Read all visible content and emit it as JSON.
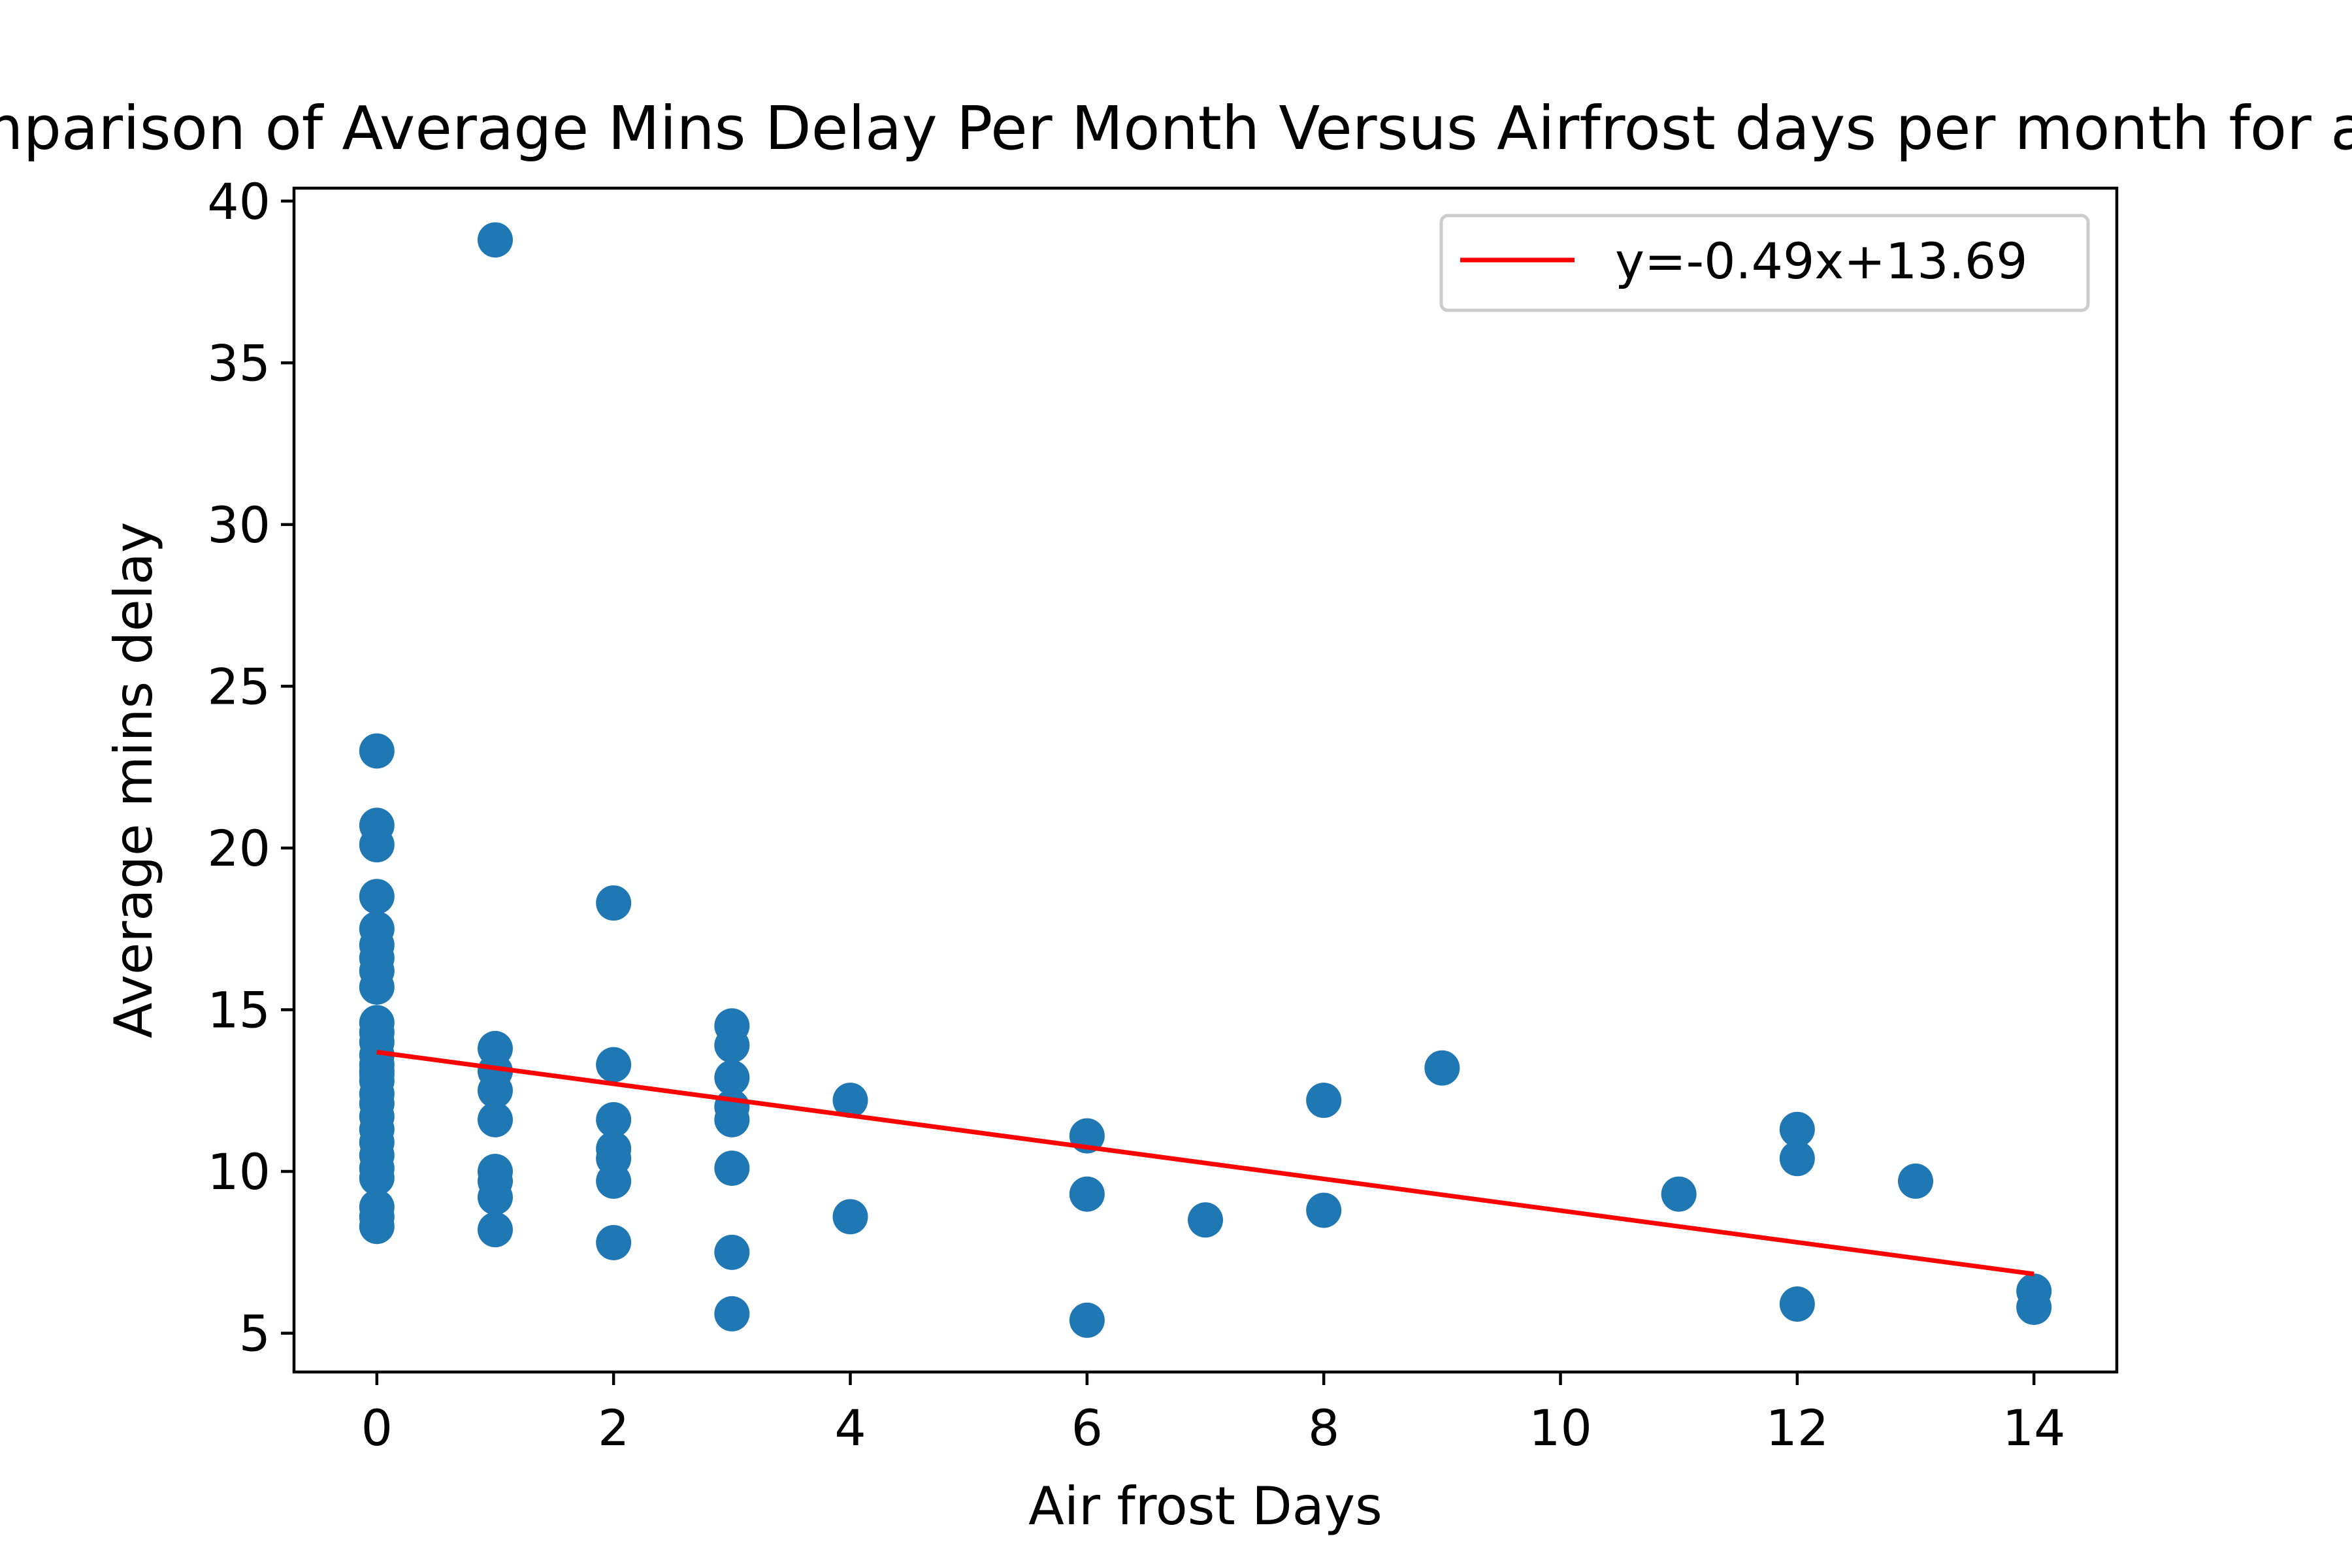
{
  "chart_data": {
    "type": "scatter",
    "title": "Comparison of Average Mins Delay Per Month Versus Airfrost days per month for all",
    "xlabel": "Air frost Days",
    "ylabel": "Average mins delay",
    "xlim": [
      -0.7,
      14.7
    ],
    "ylim": [
      3.8,
      40.4
    ],
    "xticks": [
      0,
      2,
      4,
      6,
      8,
      10,
      12,
      14
    ],
    "yticks": [
      5,
      10,
      15,
      20,
      25,
      30,
      35,
      40
    ],
    "grid": false,
    "legend": {
      "placement": "top-right",
      "entries": [
        "y=-0.49x+13.69"
      ]
    },
    "series": [
      {
        "type": "scatter",
        "color": "#1f77b4",
        "x": [
          0,
          0,
          0,
          0,
          0,
          0,
          0,
          0,
          0,
          0,
          0,
          0,
          0,
          0,
          0,
          0,
          0,
          0,
          0,
          0,
          0,
          0,
          0,
          0,
          0,
          0,
          0,
          0,
          1,
          1,
          1,
          1,
          1,
          1,
          1,
          1,
          1,
          2,
          2,
          2,
          2,
          2,
          2,
          2,
          3,
          3,
          3,
          3,
          3,
          3,
          3,
          3,
          4,
          4,
          6,
          6,
          6,
          7,
          8,
          8,
          9,
          11,
          12,
          12,
          12,
          13,
          14,
          14
        ],
        "y": [
          23.0,
          20.7,
          20.1,
          18.5,
          17.5,
          17.0,
          16.6,
          16.2,
          15.7,
          14.6,
          14.3,
          14.0,
          13.6,
          13.3,
          13.1,
          12.8,
          12.4,
          12.1,
          11.7,
          11.3,
          10.9,
          10.5,
          10.1,
          9.8,
          8.9,
          8.6,
          8.3,
          13.0,
          38.8,
          13.8,
          13.1,
          12.5,
          11.6,
          10.0,
          9.7,
          9.2,
          8.2,
          18.3,
          13.3,
          11.6,
          10.7,
          10.4,
          9.7,
          7.8,
          14.5,
          13.9,
          12.9,
          11.6,
          10.1,
          7.5,
          5.6,
          12.0,
          12.2,
          8.6,
          11.1,
          9.3,
          5.4,
          8.5,
          12.2,
          8.8,
          13.2,
          9.3,
          11.3,
          10.4,
          5.9,
          9.7,
          6.3,
          5.8
        ]
      }
    ],
    "fit_line": {
      "label": "y=-0.49x+13.69",
      "color": "#ff0000",
      "slope": -0.49,
      "intercept": 13.69,
      "x_range": [
        0,
        14
      ]
    }
  }
}
